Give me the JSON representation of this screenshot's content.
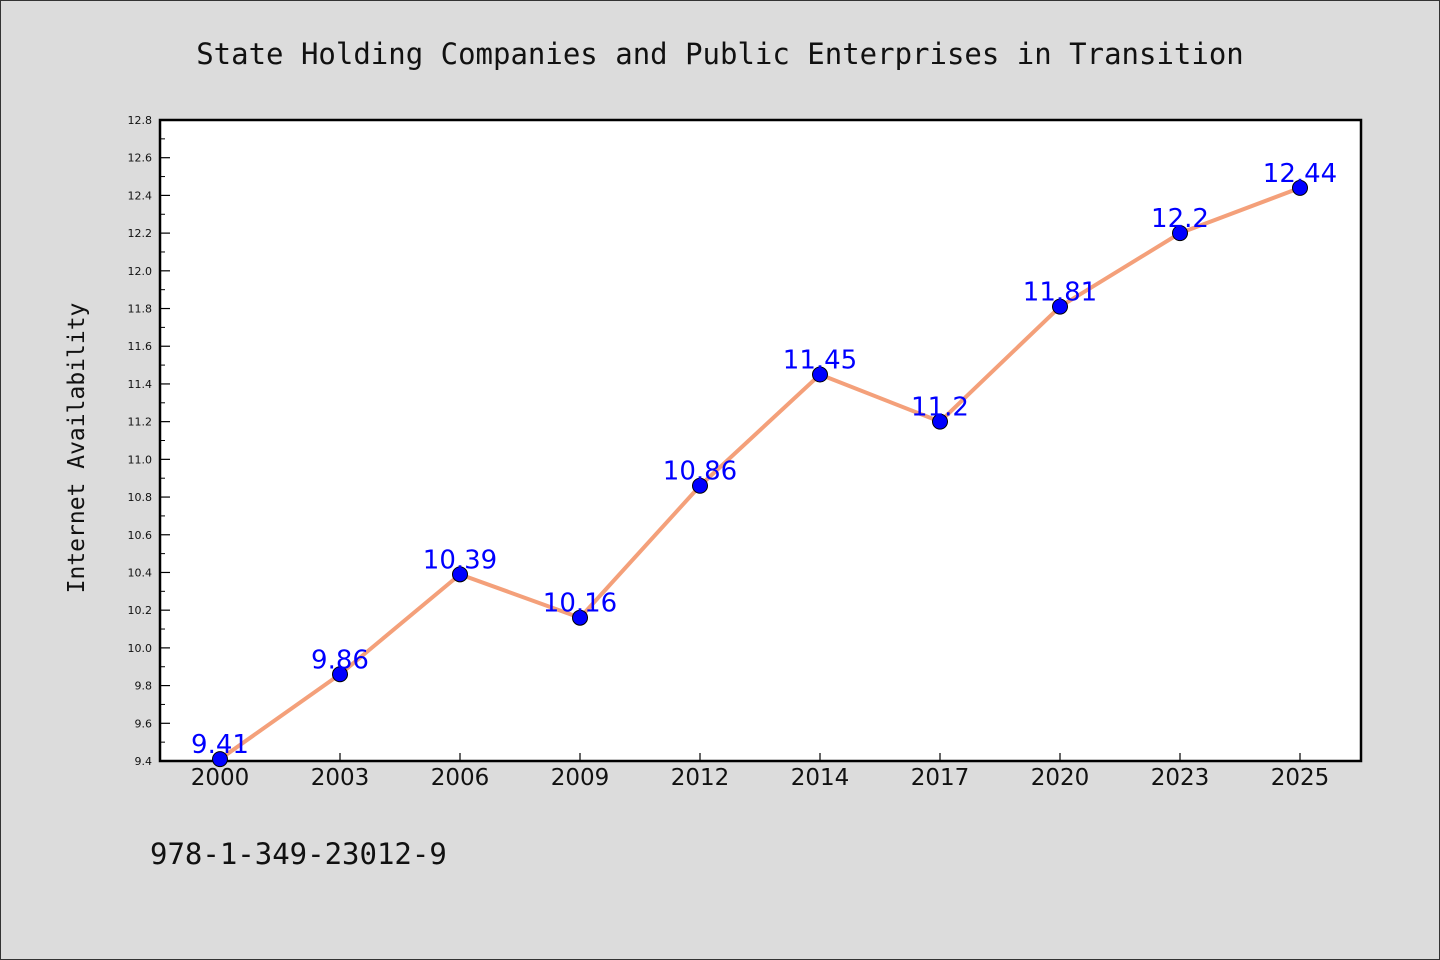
{
  "chart_data": {
    "type": "line",
    "title": "State Holding Companies and Public Enterprises in Transition",
    "xlabel": "",
    "ylabel": "Internet Availability",
    "categories": [
      "2000",
      "2003",
      "2006",
      "2009",
      "2012",
      "2014",
      "2017",
      "2020",
      "2023",
      "2025"
    ],
    "series": [
      {
        "values": [
          9.41,
          9.86,
          10.39,
          10.16,
          10.86,
          11.45,
          11.2,
          11.81,
          12.2,
          12.44
        ],
        "labels": [
          "9.41",
          "9.86",
          "10.39",
          "10.16",
          "10.86",
          "11.45",
          "11.2",
          "11.81",
          "12.2",
          "12.44"
        ],
        "line_color": "#f4a07a",
        "marker_color": "#0000ff"
      }
    ],
    "ylim": [
      9.4,
      12.8
    ],
    "yticks": [
      "9.4",
      "9.6",
      "9.8",
      "10.0",
      "10.2",
      "10.4",
      "10.6",
      "10.8",
      "11.0",
      "11.2",
      "11.4",
      "11.6",
      "11.8",
      "12.0",
      "12.2",
      "12.4",
      "12.6",
      "12.8"
    ],
    "grid": false,
    "legend": "none"
  },
  "footer": {
    "isbn": "978-1-349-23012-9"
  },
  "colors": {
    "background": "#dcdcdc",
    "plot_background": "#ffffff"
  }
}
